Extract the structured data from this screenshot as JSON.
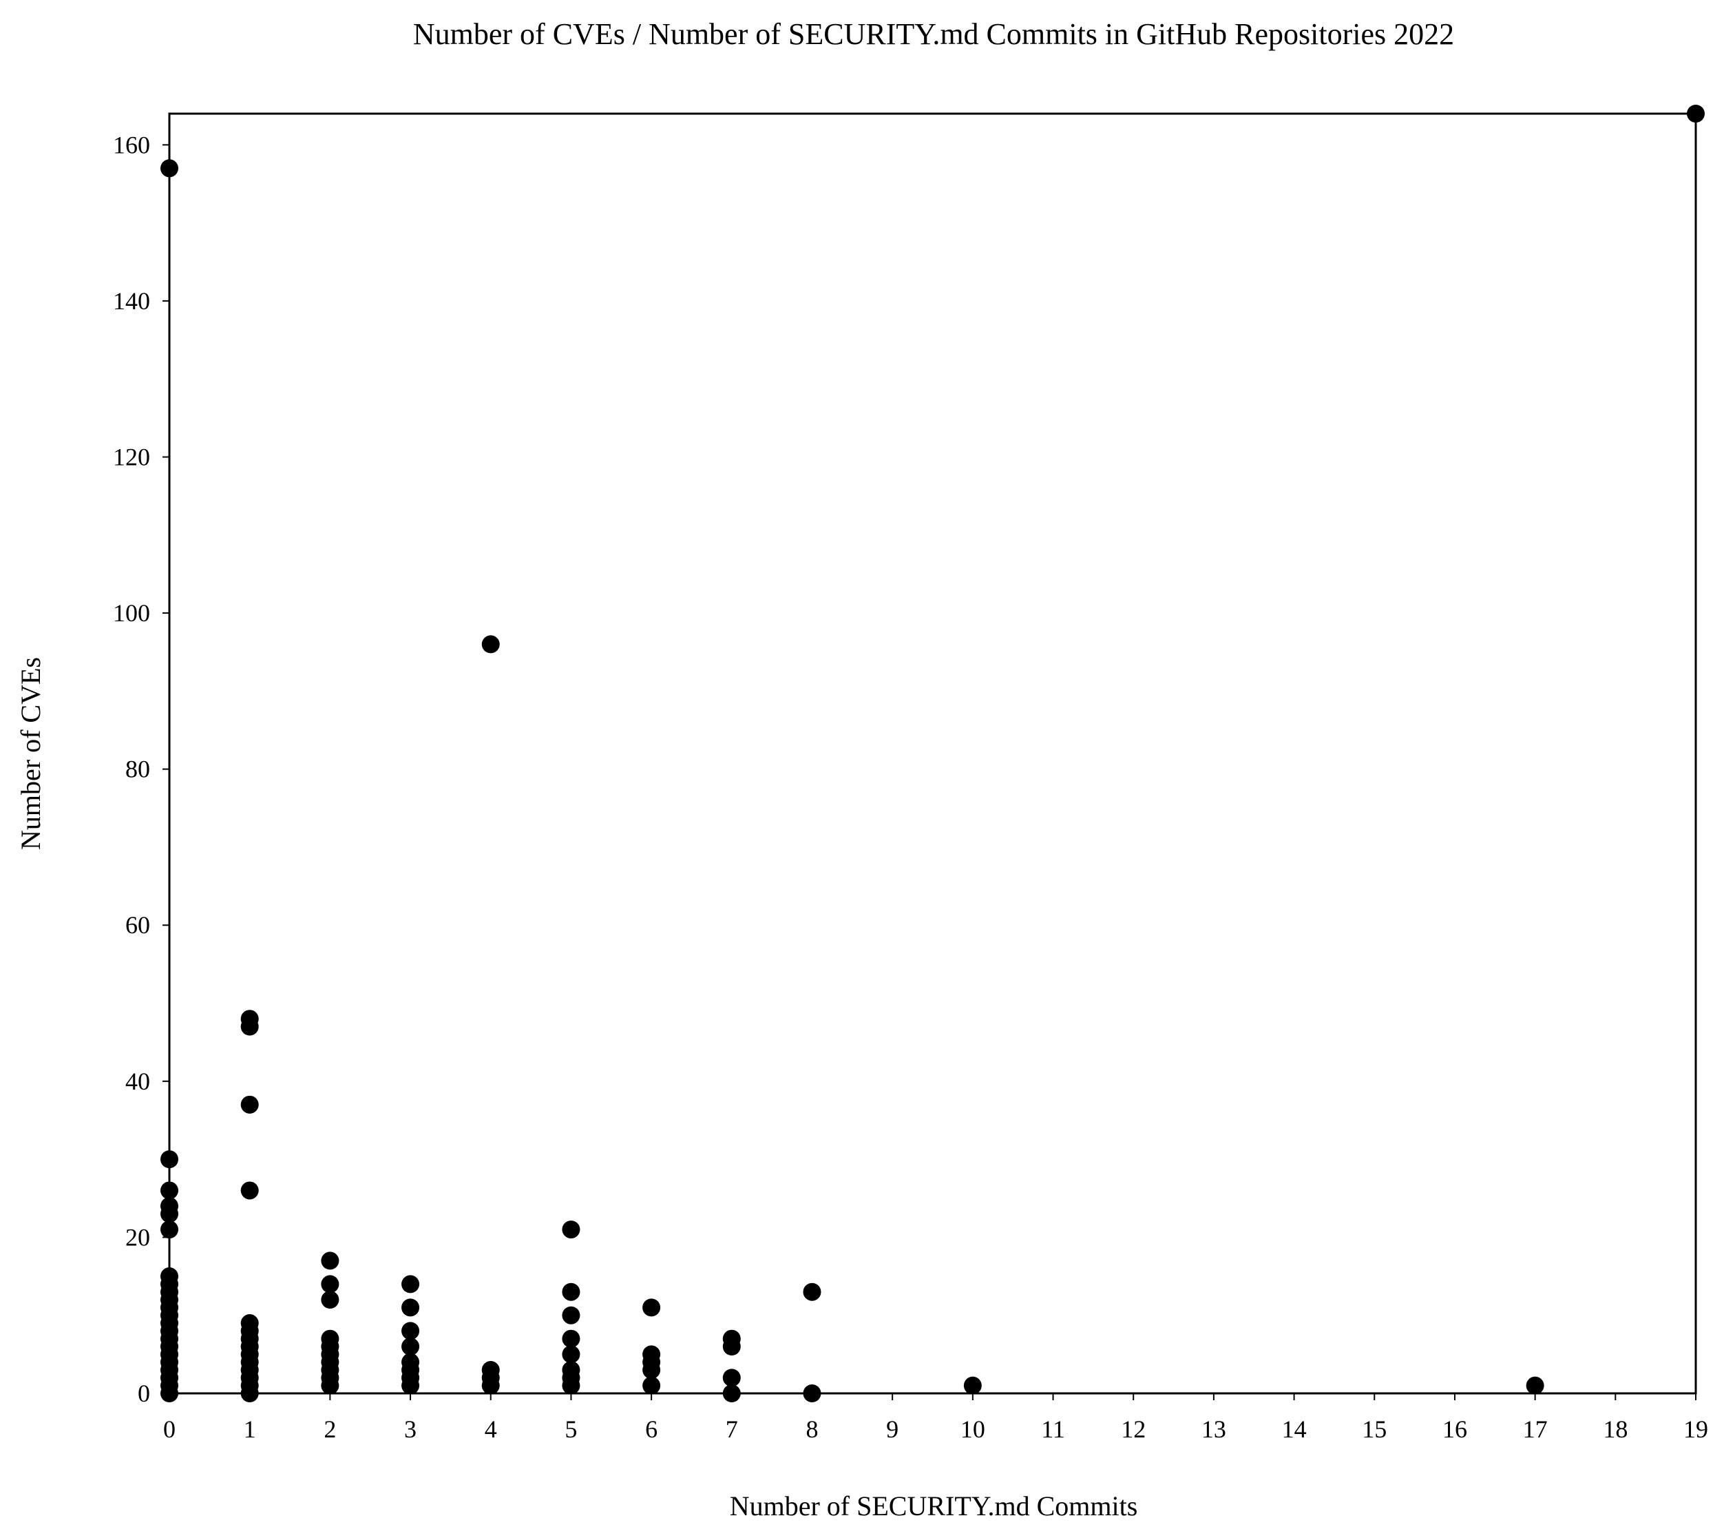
{
  "chart_data": {
    "type": "scatter",
    "title": "Number of CVEs / Number of SECURITY.md Commits in GitHub Repositories 2022",
    "xlabel": "Number of SECURITY.md Commits",
    "ylabel": "Number of CVEs",
    "xlim": [
      0,
      19
    ],
    "ylim": [
      0,
      164
    ],
    "xticks": [
      0,
      1,
      2,
      3,
      4,
      5,
      6,
      7,
      8,
      9,
      10,
      11,
      12,
      13,
      14,
      15,
      16,
      17,
      18,
      19
    ],
    "yticks": [
      0,
      20,
      40,
      60,
      80,
      100,
      120,
      140,
      160
    ],
    "grid": false,
    "legend": "none",
    "marker_color": "#000000",
    "points": [
      [
        0,
        157
      ],
      [
        0,
        30
      ],
      [
        0,
        26
      ],
      [
        0,
        24
      ],
      [
        0,
        23
      ],
      [
        0,
        21
      ],
      [
        0,
        15
      ],
      [
        0,
        14
      ],
      [
        0,
        13
      ],
      [
        0,
        12
      ],
      [
        0,
        11
      ],
      [
        0,
        10
      ],
      [
        0,
        9
      ],
      [
        0,
        8
      ],
      [
        0,
        7
      ],
      [
        0,
        6
      ],
      [
        0,
        5
      ],
      [
        0,
        4
      ],
      [
        0,
        3
      ],
      [
        0,
        2
      ],
      [
        0,
        1
      ],
      [
        0,
        0
      ],
      [
        1,
        48
      ],
      [
        1,
        47
      ],
      [
        1,
        37
      ],
      [
        1,
        26
      ],
      [
        1,
        9
      ],
      [
        1,
        8
      ],
      [
        1,
        7
      ],
      [
        1,
        6
      ],
      [
        1,
        5
      ],
      [
        1,
        4
      ],
      [
        1,
        3
      ],
      [
        1,
        2
      ],
      [
        1,
        1
      ],
      [
        1,
        0
      ],
      [
        2,
        17
      ],
      [
        2,
        14
      ],
      [
        2,
        12
      ],
      [
        2,
        7
      ],
      [
        2,
        6
      ],
      [
        2,
        5
      ],
      [
        2,
        4
      ],
      [
        2,
        3
      ],
      [
        2,
        2
      ],
      [
        2,
        1
      ],
      [
        3,
        14
      ],
      [
        3,
        11
      ],
      [
        3,
        8
      ],
      [
        3,
        6
      ],
      [
        3,
        4
      ],
      [
        3,
        3
      ],
      [
        3,
        2
      ],
      [
        3,
        1
      ],
      [
        4,
        96
      ],
      [
        4,
        3
      ],
      [
        4,
        2
      ],
      [
        4,
        1
      ],
      [
        5,
        21
      ],
      [
        5,
        13
      ],
      [
        5,
        10
      ],
      [
        5,
        7
      ],
      [
        5,
        5
      ],
      [
        5,
        3
      ],
      [
        5,
        2
      ],
      [
        5,
        1
      ],
      [
        6,
        11
      ],
      [
        6,
        5
      ],
      [
        6,
        4
      ],
      [
        6,
        3
      ],
      [
        6,
        1
      ],
      [
        7,
        7
      ],
      [
        7,
        6
      ],
      [
        7,
        2
      ],
      [
        7,
        0
      ],
      [
        8,
        13
      ],
      [
        8,
        0
      ],
      [
        10,
        1
      ],
      [
        17,
        1
      ],
      [
        19,
        164
      ]
    ]
  }
}
